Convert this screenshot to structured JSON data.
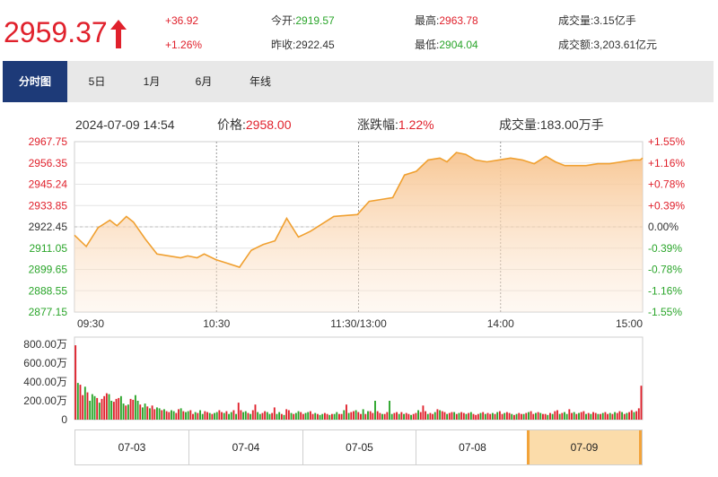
{
  "header": {
    "price": "2959.37",
    "change": "+36.92",
    "change_pct": "+1.26%",
    "open_label": "今开:",
    "open_value": "2919.57",
    "prev_close_label": "昨收:",
    "prev_close_value": "2922.45",
    "high_label": "最高:",
    "high_value": "2963.78",
    "low_label": "最低:",
    "low_value": "2904.04",
    "volume_label": "成交量:",
    "volume_value": "3.15亿手",
    "amount_label": "成交额:",
    "amount_value": "3,203.61亿元",
    "arrow_icon": "up-arrow-icon"
  },
  "tabs": [
    {
      "label": "分时图",
      "active": true
    },
    {
      "label": "5日",
      "active": false
    },
    {
      "label": "1月",
      "active": false
    },
    {
      "label": "6月",
      "active": false
    },
    {
      "label": "年线",
      "active": false
    }
  ],
  "info": {
    "datetime": "2024-07-09 14:54",
    "price_label": "价格:",
    "price_value": "2958.00",
    "change_label": "涨跌幅:",
    "change_value": "1.22%",
    "volume_label": "成交量:",
    "volume_value": "183.00万手"
  },
  "colors": {
    "up": "#e0212c",
    "down": "#2aa52a",
    "line": "#f0a030",
    "accent": "#1d3a78"
  },
  "date_tabs": [
    {
      "label": "07-03",
      "selected": false
    },
    {
      "label": "07-04",
      "selected": false
    },
    {
      "label": "07-05",
      "selected": false
    },
    {
      "label": "07-08",
      "selected": false
    },
    {
      "label": "07-09",
      "selected": true
    }
  ],
  "chart_data": [
    {
      "type": "area",
      "x_ticks": [
        "09:30",
        "10:30",
        "11:30/13:00",
        "14:00",
        "15:00"
      ],
      "y_ticks": [
        "2967.75",
        "2956.35",
        "2945.24",
        "2933.85",
        "2922.45",
        "2911.05",
        "2899.65",
        "2888.55",
        "2877.15"
      ],
      "y_pct_ticks": [
        "+1.55%",
        "+1.16%",
        "+0.78%",
        "+0.39%",
        "0.00%",
        "-0.39%",
        "-0.78%",
        "-1.16%",
        "-1.55%"
      ],
      "ylim": [
        2877.15,
        2967.75
      ],
      "prev_close": 2922.45,
      "x": [
        0,
        5,
        10,
        15,
        18,
        22,
        25,
        30,
        35,
        40,
        45,
        48,
        52,
        55,
        60,
        65,
        70,
        75,
        80,
        85,
        90,
        95,
        100,
        110,
        120,
        125,
        130,
        135,
        140,
        145,
        150,
        155,
        158,
        162,
        166,
        170,
        175,
        180,
        185,
        190,
        195,
        200,
        204,
        208,
        212,
        217,
        222,
        227,
        232,
        237,
        240,
        241
      ],
      "values": [
        2918,
        2912,
        2922,
        2926,
        2923,
        2928,
        2925,
        2916,
        2908,
        2907,
        2906,
        2907,
        2906,
        2908,
        2905,
        2903,
        2901,
        2910,
        2913,
        2915,
        2927,
        2917,
        2920,
        2928,
        2929,
        2936,
        2937,
        2938,
        2950,
        2952,
        2958,
        2959,
        2957,
        2962,
        2961,
        2958,
        2957,
        2958,
        2959,
        2958,
        2956,
        2960,
        2957,
        2955,
        2955,
        2955,
        2956,
        2956,
        2957,
        2958,
        2958,
        2959
      ],
      "grid": true
    },
    {
      "type": "bar",
      "y_ticks": [
        "800.00万",
        "600.00万",
        "400.00万",
        "200.00万",
        "0"
      ],
      "ylim": [
        0,
        800
      ],
      "unit": "万",
      "values": [
        790,
        390,
        370,
        260,
        350,
        290,
        200,
        270,
        250,
        230,
        180,
        220,
        250,
        280,
        270,
        200,
        190,
        220,
        230,
        250,
        170,
        150,
        160,
        220,
        210,
        260,
        200,
        160,
        130,
        170,
        140,
        120,
        150,
        110,
        130,
        120,
        100,
        110,
        90,
        80,
        100,
        90,
        70,
        110,
        120,
        90,
        80,
        90,
        100,
        60,
        80,
        70,
        100,
        60,
        90,
        80,
        70,
        60,
        70,
        80,
        100,
        80,
        70,
        90,
        60,
        80,
        100,
        60,
        180,
        100,
        80,
        90,
        70,
        60,
        100,
        160,
        80,
        60,
        70,
        90,
        80,
        60,
        70,
        130,
        60,
        80,
        60,
        50,
        110,
        100,
        70,
        60,
        70,
        90,
        80,
        60,
        70,
        80,
        90,
        60,
        70,
        60,
        50,
        60,
        70,
        60,
        50,
        60,
        60,
        80,
        60,
        60,
        100,
        160,
        70,
        80,
        90,
        100,
        80,
        60,
        110,
        60,
        90,
        90,
        70,
        200,
        90,
        70,
        60,
        60,
        80,
        200,
        60,
        70,
        80,
        60,
        80,
        60,
        70,
        60,
        50,
        60,
        70,
        100,
        80,
        150,
        90,
        60,
        70,
        60,
        80,
        110,
        100,
        90,
        80,
        60,
        70,
        80,
        80,
        60,
        70,
        80,
        70,
        60,
        70,
        80,
        60,
        50,
        60,
        70,
        80,
        60,
        70,
        60,
        70,
        60,
        80,
        90,
        60,
        70,
        80,
        70,
        60,
        50,
        60,
        70,
        60,
        60,
        70,
        80,
        90,
        60,
        70,
        80,
        70,
        60,
        60,
        50,
        70,
        60,
        90,
        100,
        60,
        70,
        80,
        60,
        110,
        70,
        80,
        60,
        70,
        80,
        90,
        60,
        70,
        60,
        80,
        70,
        60,
        60,
        70,
        80,
        60,
        70,
        60,
        80,
        70,
        90,
        80,
        60,
        70,
        80,
        100,
        80,
        90,
        120,
        360
      ],
      "up": [
        1,
        0,
        1,
        1,
        0,
        1,
        0,
        0,
        0,
        1,
        0,
        1,
        1,
        1,
        0,
        0,
        1,
        1,
        1,
        0,
        0,
        1,
        0,
        1,
        1,
        0,
        0,
        1,
        0,
        0,
        1,
        0,
        1,
        1,
        0,
        0,
        1,
        0,
        1,
        1,
        0,
        0,
        1,
        1,
        0,
        1,
        0,
        0,
        1,
        1,
        0,
        1,
        0,
        0,
        1,
        1,
        0,
        1,
        0,
        0,
        1,
        1,
        0,
        1,
        0,
        0,
        1,
        0,
        1,
        1,
        0,
        0,
        1,
        0,
        1,
        1,
        0,
        0,
        1,
        1,
        0,
        0,
        1,
        1,
        0,
        0,
        1,
        0,
        1,
        1,
        0,
        1,
        0,
        0,
        1,
        1,
        0,
        0,
        1,
        1,
        0,
        1,
        0,
        0,
        1,
        1,
        0,
        1,
        0,
        0,
        1,
        1,
        0,
        1,
        0,
        1,
        1,
        0,
        1,
        1,
        0,
        1,
        0,
        1,
        1,
        0,
        1,
        1,
        0,
        1,
        1,
        0,
        0,
        1,
        1,
        0,
        1,
        0,
        1,
        1,
        0,
        1,
        1,
        0,
        1,
        1,
        1,
        0,
        1,
        1,
        0,
        1,
        0,
        1,
        1,
        0,
        1,
        1,
        0,
        1,
        0,
        1,
        1,
        0,
        1,
        0,
        1,
        1,
        1,
        0,
        1,
        0,
        1,
        1,
        0,
        1,
        0,
        1,
        1,
        0,
        1,
        1,
        0,
        1,
        0,
        1,
        1,
        0,
        1,
        0,
        1,
        1,
        0,
        1,
        0,
        1,
        1,
        0,
        1,
        0,
        1,
        1,
        0,
        1,
        0,
        0,
        1,
        1,
        0,
        1,
        0,
        1,
        1,
        0,
        1,
        0,
        1,
        1,
        0,
        1,
        0,
        1,
        1,
        0,
        1,
        0,
        1,
        1,
        0,
        1,
        0,
        1,
        1,
        0,
        1,
        1,
        1,
        1,
        1
      ],
      "grid": false
    }
  ]
}
